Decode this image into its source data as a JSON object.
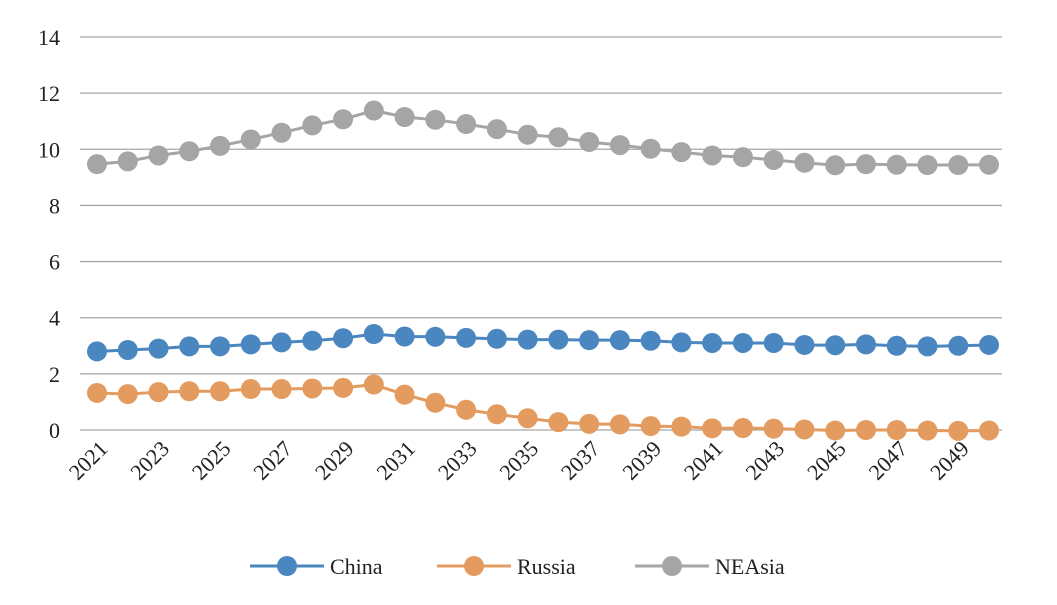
{
  "chart_data": {
    "type": "line",
    "title": "",
    "xlabel": "",
    "ylabel": "",
    "x": [
      "2021",
      "2022",
      "2023",
      "2024",
      "2025",
      "2026",
      "2027",
      "2028",
      "2029",
      "2030",
      "2031",
      "2032",
      "2033",
      "2034",
      "2035",
      "2036",
      "2037",
      "2038",
      "2039",
      "2040",
      "2041",
      "2042",
      "2043",
      "2044",
      "2045",
      "2046",
      "2047",
      "2048",
      "2049",
      "2050"
    ],
    "x_tick_labels": [
      "2021",
      "2023",
      "2025",
      "2027",
      "2029",
      "2031",
      "2033",
      "2035",
      "2037",
      "2039",
      "2041",
      "2043",
      "2045",
      "2047",
      "2049"
    ],
    "ylim": [
      0,
      14
    ],
    "y_ticks": [
      0,
      2,
      4,
      6,
      8,
      10,
      12,
      14
    ],
    "grid": "horizontal",
    "legend_position": "bottom",
    "series": [
      {
        "name": "China",
        "color": "#4A86C0",
        "values": [
          2.8,
          2.85,
          2.9,
          2.98,
          2.98,
          3.05,
          3.12,
          3.18,
          3.27,
          3.42,
          3.33,
          3.32,
          3.28,
          3.25,
          3.22,
          3.22,
          3.2,
          3.2,
          3.18,
          3.12,
          3.1,
          3.1,
          3.1,
          3.03,
          3.02,
          3.05,
          3.0,
          2.98,
          3.0,
          3.03
        ]
      },
      {
        "name": "Russia",
        "color": "#E49B5F",
        "values": [
          1.32,
          1.28,
          1.35,
          1.38,
          1.38,
          1.46,
          1.46,
          1.48,
          1.5,
          1.62,
          1.26,
          0.97,
          0.72,
          0.56,
          0.42,
          0.28,
          0.22,
          0.2,
          0.14,
          0.12,
          0.06,
          0.07,
          0.05,
          0.02,
          -0.02,
          0.0,
          0.0,
          -0.02,
          -0.03,
          -0.02
        ]
      },
      {
        "name": "NEAsia",
        "color": "#A5A5A5",
        "values": [
          9.47,
          9.57,
          9.78,
          9.93,
          10.12,
          10.35,
          10.59,
          10.85,
          11.07,
          11.38,
          11.15,
          11.05,
          10.9,
          10.72,
          10.52,
          10.43,
          10.26,
          10.15,
          10.02,
          9.9,
          9.78,
          9.72,
          9.62,
          9.52,
          9.43,
          9.47,
          9.45,
          9.44,
          9.44,
          9.45
        ]
      }
    ]
  }
}
